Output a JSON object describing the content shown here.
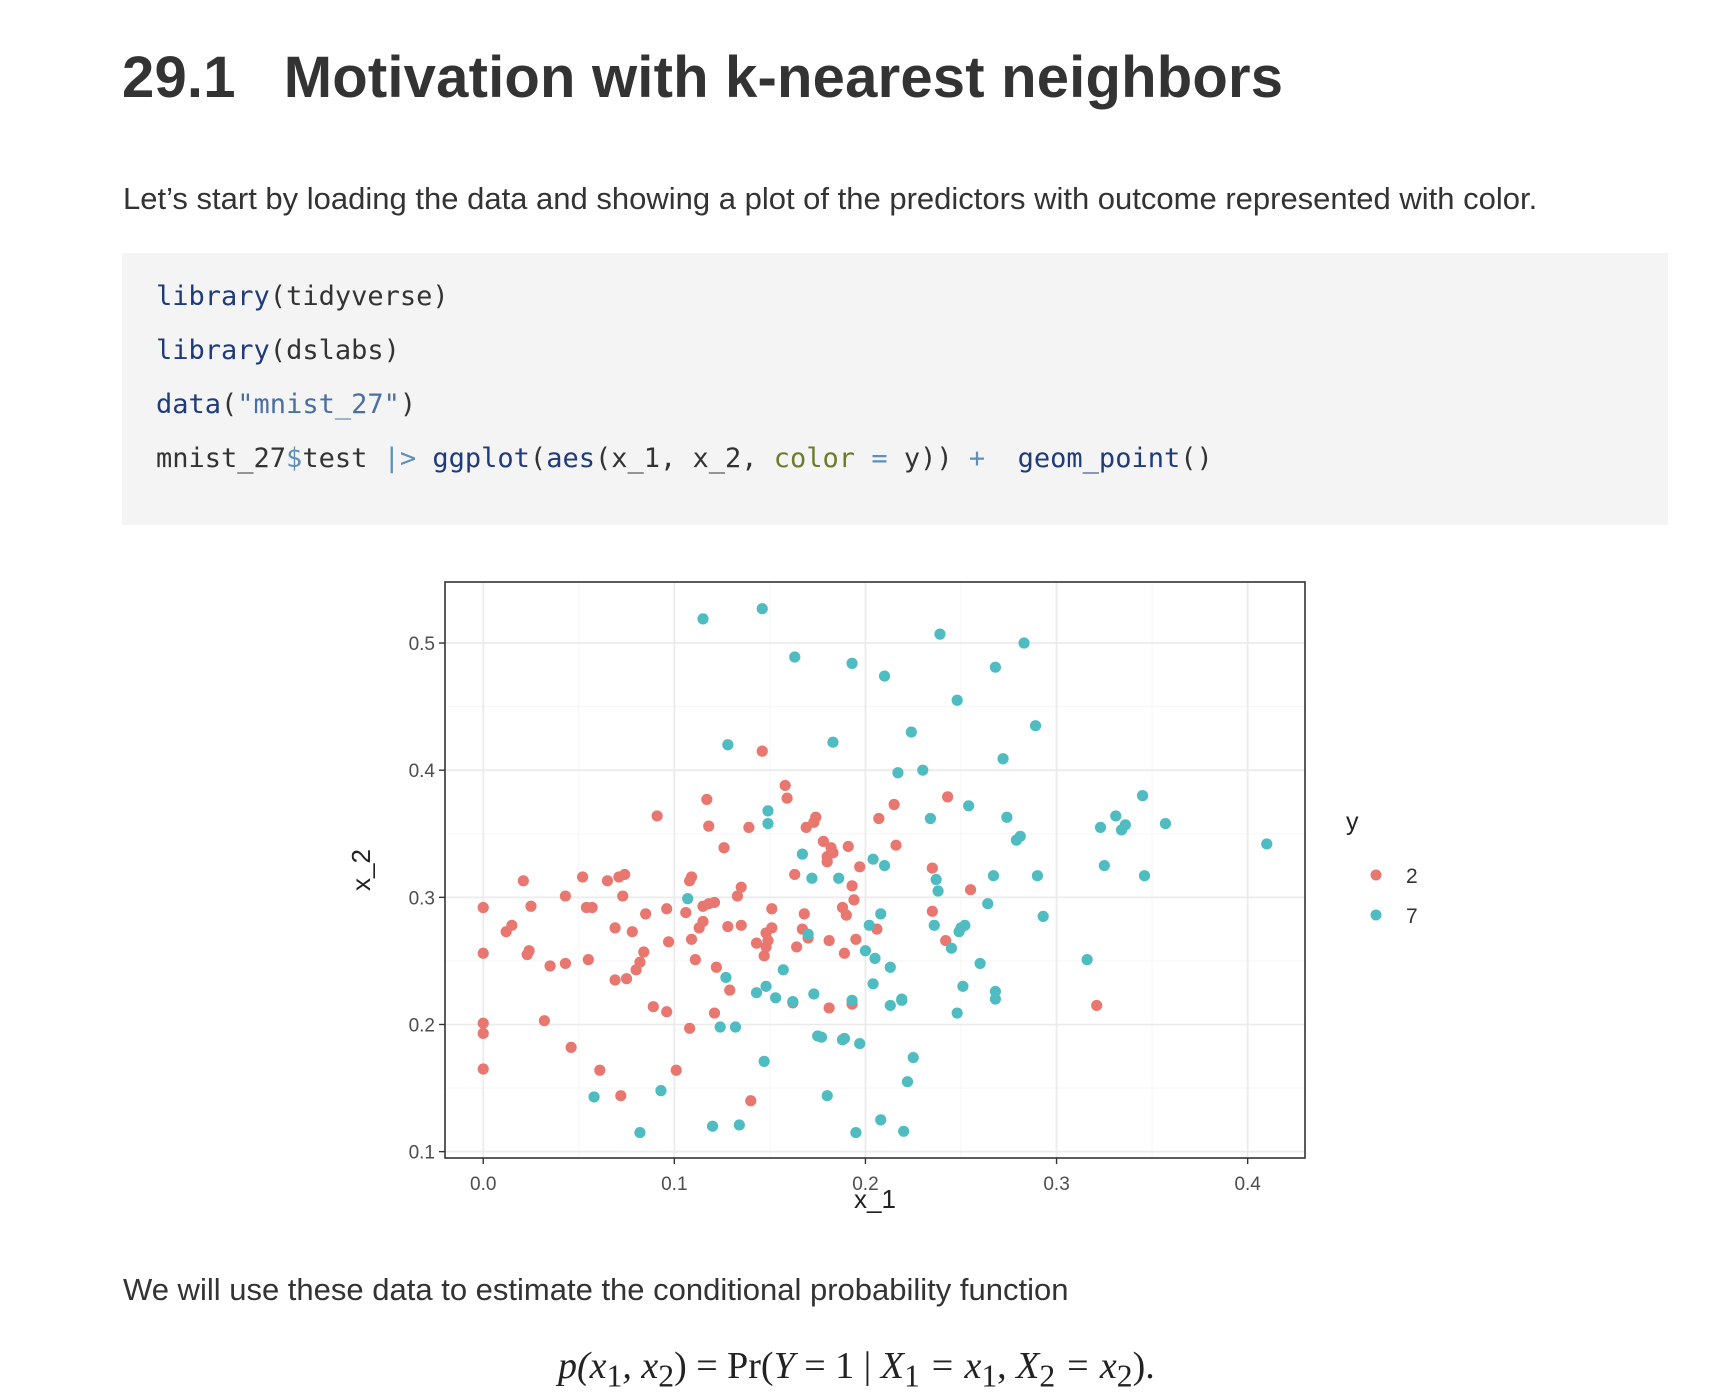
{
  "section": {
    "number": "29.1",
    "title": "Motivation with k-nearest neighbors"
  },
  "intro_text": "Let’s start by loading the data and showing a plot of the predictors with outcome represented with color.",
  "code": {
    "line1": {
      "fn": "library",
      "open": "(",
      "arg": "tidyverse",
      "close": ")"
    },
    "line2": {
      "fn": "library",
      "open": "(",
      "arg": "dslabs",
      "close": ")"
    },
    "line3": {
      "fn": "data",
      "open": "(",
      "str": "\"mnist_27\"",
      "close": ")"
    },
    "line4": {
      "obj": "mnist_27",
      "dollar": "$",
      "field": "test ",
      "pipe": "|>",
      "space1": " ",
      "ggplot": "ggplot",
      "p1": "(",
      "aes": "aes",
      "p2": "(x_1, x_2, ",
      "color": "color",
      "eq": " = ",
      "y": "y)) ",
      "plus": "+",
      "space2": "  ",
      "geom": "geom_point",
      "p3": "()"
    }
  },
  "colors": {
    "class_2": "#e8776f",
    "class_7": "#4fbcc2",
    "panel_border": "#333333",
    "grid_major": "#ebebeb",
    "grid_minor": "#f5f5f5",
    "code_background": "#f4f4f4"
  },
  "chart_data": {
    "type": "scatter",
    "xlabel": "x_1",
    "ylabel": "x_2",
    "xlim": [
      -0.02,
      0.43
    ],
    "ylim": [
      0.095,
      0.548
    ],
    "x_ticks": [
      0.0,
      0.1,
      0.2,
      0.3,
      0.4
    ],
    "x_tick_labels": [
      "0.0",
      "0.1",
      "0.2",
      "0.3",
      "0.4"
    ],
    "y_ticks": [
      0.1,
      0.2,
      0.3,
      0.4,
      0.5
    ],
    "y_tick_labels": [
      "0.1",
      "0.2",
      "0.3",
      "0.4",
      "0.5"
    ],
    "grid": true,
    "legend": {
      "title": "y",
      "position": "right"
    },
    "series": [
      {
        "name": "2",
        "color": "#e8776f",
        "points": [
          [
            0.0,
            0.292
          ],
          [
            0.0,
            0.256
          ],
          [
            0.0,
            0.201
          ],
          [
            0.0,
            0.193
          ],
          [
            0.0,
            0.165
          ],
          [
            0.012,
            0.273
          ],
          [
            0.015,
            0.278
          ],
          [
            0.021,
            0.313
          ],
          [
            0.023,
            0.255
          ],
          [
            0.024,
            0.258
          ],
          [
            0.025,
            0.293
          ],
          [
            0.032,
            0.203
          ],
          [
            0.035,
            0.246
          ],
          [
            0.043,
            0.248
          ],
          [
            0.043,
            0.301
          ],
          [
            0.046,
            0.182
          ],
          [
            0.052,
            0.316
          ],
          [
            0.054,
            0.292
          ],
          [
            0.055,
            0.251
          ],
          [
            0.057,
            0.292
          ],
          [
            0.061,
            0.164
          ],
          [
            0.065,
            0.313
          ],
          [
            0.069,
            0.276
          ],
          [
            0.069,
            0.235
          ],
          [
            0.071,
            0.316
          ],
          [
            0.072,
            0.144
          ],
          [
            0.073,
            0.301
          ],
          [
            0.074,
            0.318
          ],
          [
            0.075,
            0.236
          ],
          [
            0.078,
            0.273
          ],
          [
            0.08,
            0.243
          ],
          [
            0.082,
            0.249
          ],
          [
            0.084,
            0.257
          ],
          [
            0.085,
            0.287
          ],
          [
            0.089,
            0.214
          ],
          [
            0.091,
            0.364
          ],
          [
            0.096,
            0.291
          ],
          [
            0.096,
            0.21
          ],
          [
            0.097,
            0.265
          ],
          [
            0.101,
            0.164
          ],
          [
            0.106,
            0.288
          ],
          [
            0.108,
            0.197
          ],
          [
            0.108,
            0.313
          ],
          [
            0.109,
            0.267
          ],
          [
            0.109,
            0.316
          ],
          [
            0.111,
            0.251
          ],
          [
            0.113,
            0.276
          ],
          [
            0.115,
            0.281
          ],
          [
            0.115,
            0.293
          ],
          [
            0.117,
            0.377
          ],
          [
            0.118,
            0.356
          ],
          [
            0.118,
            0.295
          ],
          [
            0.121,
            0.296
          ],
          [
            0.121,
            0.209
          ],
          [
            0.122,
            0.245
          ],
          [
            0.126,
            0.339
          ],
          [
            0.128,
            0.277
          ],
          [
            0.129,
            0.227
          ],
          [
            0.133,
            0.301
          ],
          [
            0.135,
            0.308
          ],
          [
            0.135,
            0.278
          ],
          [
            0.139,
            0.355
          ],
          [
            0.14,
            0.14
          ],
          [
            0.143,
            0.264
          ],
          [
            0.146,
            0.415
          ],
          [
            0.147,
            0.254
          ],
          [
            0.148,
            0.261
          ],
          [
            0.148,
            0.272
          ],
          [
            0.149,
            0.266
          ],
          [
            0.151,
            0.276
          ],
          [
            0.151,
            0.291
          ],
          [
            0.158,
            0.388
          ],
          [
            0.159,
            0.378
          ],
          [
            0.162,
            0.217
          ],
          [
            0.163,
            0.318
          ],
          [
            0.164,
            0.261
          ],
          [
            0.167,
            0.275
          ],
          [
            0.168,
            0.287
          ],
          [
            0.169,
            0.355
          ],
          [
            0.17,
            0.268
          ],
          [
            0.173,
            0.359
          ],
          [
            0.174,
            0.363
          ],
          [
            0.178,
            0.344
          ],
          [
            0.18,
            0.332
          ],
          [
            0.18,
            0.328
          ],
          [
            0.181,
            0.266
          ],
          [
            0.181,
            0.213
          ],
          [
            0.182,
            0.339
          ],
          [
            0.183,
            0.335
          ],
          [
            0.188,
            0.292
          ],
          [
            0.189,
            0.256
          ],
          [
            0.19,
            0.286
          ],
          [
            0.191,
            0.34
          ],
          [
            0.193,
            0.309
          ],
          [
            0.193,
            0.216
          ],
          [
            0.194,
            0.298
          ],
          [
            0.195,
            0.267
          ],
          [
            0.197,
            0.324
          ],
          [
            0.206,
            0.275
          ],
          [
            0.207,
            0.362
          ],
          [
            0.215,
            0.373
          ],
          [
            0.216,
            0.341
          ],
          [
            0.235,
            0.323
          ],
          [
            0.235,
            0.289
          ],
          [
            0.242,
            0.266
          ],
          [
            0.243,
            0.379
          ],
          [
            0.255,
            0.306
          ],
          [
            0.321,
            0.215
          ]
        ]
      },
      {
        "name": "7",
        "color": "#4fbcc2",
        "points": [
          [
            0.058,
            0.143
          ],
          [
            0.082,
            0.115
          ],
          [
            0.093,
            0.148
          ],
          [
            0.107,
            0.299
          ],
          [
            0.115,
            0.519
          ],
          [
            0.12,
            0.12
          ],
          [
            0.124,
            0.198
          ],
          [
            0.127,
            0.237
          ],
          [
            0.128,
            0.42
          ],
          [
            0.132,
            0.198
          ],
          [
            0.134,
            0.121
          ],
          [
            0.143,
            0.225
          ],
          [
            0.146,
            0.527
          ],
          [
            0.147,
            0.171
          ],
          [
            0.148,
            0.23
          ],
          [
            0.149,
            0.358
          ],
          [
            0.149,
            0.368
          ],
          [
            0.153,
            0.221
          ],
          [
            0.157,
            0.243
          ],
          [
            0.162,
            0.218
          ],
          [
            0.163,
            0.489
          ],
          [
            0.167,
            0.334
          ],
          [
            0.17,
            0.271
          ],
          [
            0.172,
            0.315
          ],
          [
            0.173,
            0.224
          ],
          [
            0.175,
            0.191
          ],
          [
            0.177,
            0.19
          ],
          [
            0.18,
            0.144
          ],
          [
            0.183,
            0.422
          ],
          [
            0.186,
            0.315
          ],
          [
            0.188,
            0.188
          ],
          [
            0.189,
            0.189
          ],
          [
            0.193,
            0.219
          ],
          [
            0.193,
            0.484
          ],
          [
            0.195,
            0.115
          ],
          [
            0.197,
            0.185
          ],
          [
            0.2,
            0.258
          ],
          [
            0.202,
            0.278
          ],
          [
            0.204,
            0.33
          ],
          [
            0.204,
            0.232
          ],
          [
            0.205,
            0.252
          ],
          [
            0.208,
            0.125
          ],
          [
            0.208,
            0.287
          ],
          [
            0.21,
            0.474
          ],
          [
            0.21,
            0.325
          ],
          [
            0.213,
            0.215
          ],
          [
            0.213,
            0.245
          ],
          [
            0.217,
            0.398
          ],
          [
            0.219,
            0.219
          ],
          [
            0.219,
            0.22
          ],
          [
            0.22,
            0.116
          ],
          [
            0.222,
            0.155
          ],
          [
            0.224,
            0.43
          ],
          [
            0.225,
            0.174
          ],
          [
            0.23,
            0.4
          ],
          [
            0.234,
            0.362
          ],
          [
            0.236,
            0.278
          ],
          [
            0.237,
            0.314
          ],
          [
            0.238,
            0.305
          ],
          [
            0.239,
            0.507
          ],
          [
            0.245,
            0.26
          ],
          [
            0.248,
            0.455
          ],
          [
            0.248,
            0.209
          ],
          [
            0.249,
            0.273
          ],
          [
            0.25,
            0.276
          ],
          [
            0.251,
            0.23
          ],
          [
            0.252,
            0.278
          ],
          [
            0.254,
            0.372
          ],
          [
            0.26,
            0.248
          ],
          [
            0.264,
            0.295
          ],
          [
            0.267,
            0.317
          ],
          [
            0.268,
            0.481
          ],
          [
            0.268,
            0.22
          ],
          [
            0.268,
            0.226
          ],
          [
            0.272,
            0.409
          ],
          [
            0.274,
            0.363
          ],
          [
            0.279,
            0.345
          ],
          [
            0.281,
            0.348
          ],
          [
            0.283,
            0.5
          ],
          [
            0.289,
            0.435
          ],
          [
            0.29,
            0.317
          ],
          [
            0.293,
            0.285
          ],
          [
            0.316,
            0.251
          ],
          [
            0.323,
            0.355
          ],
          [
            0.325,
            0.325
          ],
          [
            0.331,
            0.364
          ],
          [
            0.334,
            0.353
          ],
          [
            0.336,
            0.357
          ],
          [
            0.345,
            0.38
          ],
          [
            0.346,
            0.317
          ],
          [
            0.357,
            0.358
          ],
          [
            0.41,
            0.342
          ]
        ]
      }
    ]
  },
  "body_text": "We will use these data to estimate the conditional probability function",
  "equation": {
    "lhs": "p(x",
    "sub1": "1",
    "comma1": ", x",
    "sub2": "2",
    "close1": ") = Pr(",
    "Y": "Y",
    "eq1": " = 1 | ",
    "X1": "X",
    "sub3": "1",
    "eq2": " = x",
    "sub4": "1",
    "comma2": ", ",
    "X2": "X",
    "sub5": "2",
    "eq3": " = x",
    "sub6": "2",
    "end": ")."
  }
}
